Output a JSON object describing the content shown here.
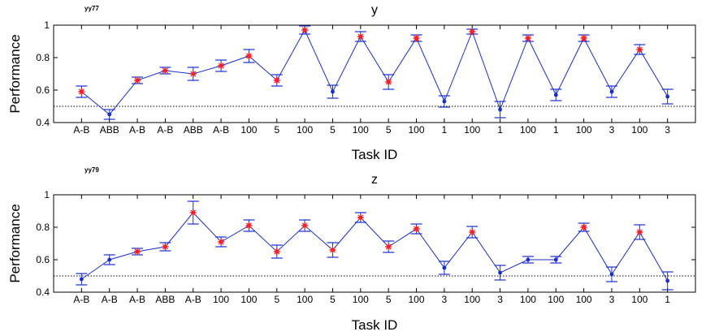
{
  "colors": {
    "line": "#1a2ec8",
    "marker": "#1a2ec8",
    "star": "#ff2020",
    "errorbar": "#1a2ec8",
    "chance": "#000000"
  },
  "chart_data": [
    {
      "type": "line",
      "tag": "yy77",
      "title": "y",
      "xlabel": "Task ID",
      "ylabel": "Performance",
      "ylim": [
        0.4,
        1.0
      ],
      "yticks": [
        "0.4",
        "0.6",
        "0.8",
        "1"
      ],
      "chance_level": 0.5,
      "categories": [
        "A-B",
        "ABB",
        "A-B",
        "A-B",
        "ABB",
        "A-B",
        "100",
        "5",
        "100",
        "5",
        "100",
        "5",
        "100",
        "1",
        "100",
        "1",
        "100",
        "1",
        "100",
        "3",
        "100",
        "3"
      ],
      "series": [
        {
          "values": [
            0.59,
            0.45,
            0.66,
            0.72,
            0.7,
            0.75,
            0.81,
            0.66,
            0.97,
            0.59,
            0.93,
            0.65,
            0.92,
            0.53,
            0.96,
            0.48,
            0.92,
            0.57,
            0.92,
            0.59,
            0.85,
            0.56
          ],
          "errors": [
            0.035,
            0.03,
            0.02,
            0.02,
            0.04,
            0.035,
            0.04,
            0.035,
            0.025,
            0.04,
            0.03,
            0.045,
            0.02,
            0.035,
            0.015,
            0.05,
            0.02,
            0.035,
            0.02,
            0.035,
            0.03,
            0.045
          ],
          "starred": [
            true,
            false,
            true,
            true,
            true,
            true,
            true,
            true,
            true,
            false,
            true,
            true,
            true,
            false,
            true,
            false,
            true,
            false,
            true,
            false,
            true,
            false
          ]
        }
      ]
    },
    {
      "type": "line",
      "tag": "yy79",
      "title": "z",
      "xlabel": "Task ID",
      "ylabel": "Performance",
      "ylim": [
        0.4,
        1.0
      ],
      "yticks": [
        "0.4",
        "0.6",
        "0.8",
        "1"
      ],
      "chance_level": 0.5,
      "categories": [
        "A-B",
        "A-B",
        "A-B",
        "ABB",
        "A-B",
        "100",
        "100",
        "5",
        "100",
        "5",
        "100",
        "5",
        "100",
        "3",
        "100",
        "3",
        "100",
        "100",
        "100",
        "3",
        "100",
        "1"
      ],
      "series": [
        {
          "values": [
            0.48,
            0.6,
            0.65,
            0.68,
            0.89,
            0.71,
            0.81,
            0.65,
            0.81,
            0.66,
            0.86,
            0.68,
            0.79,
            0.55,
            0.77,
            0.52,
            0.6,
            0.6,
            0.8,
            0.51,
            0.77,
            0.47
          ],
          "errors": [
            0.035,
            0.03,
            0.02,
            0.025,
            0.07,
            0.03,
            0.035,
            0.04,
            0.035,
            0.045,
            0.03,
            0.035,
            0.03,
            0.04,
            0.035,
            0.045,
            0.02,
            0.02,
            0.025,
            0.045,
            0.045,
            0.055
          ],
          "starred": [
            false,
            false,
            true,
            true,
            true,
            true,
            true,
            true,
            true,
            true,
            true,
            true,
            true,
            false,
            true,
            false,
            false,
            false,
            true,
            false,
            true,
            false
          ]
        }
      ]
    }
  ]
}
